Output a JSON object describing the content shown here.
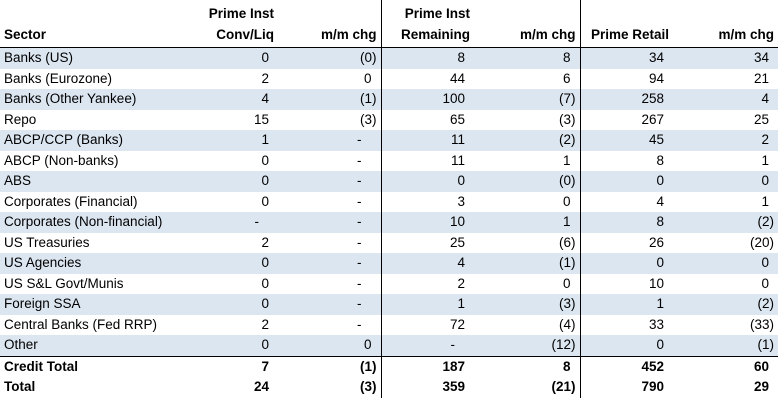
{
  "table": {
    "headers": [
      [
        "Sector"
      ],
      [
        "Prime Inst",
        "Conv/Liq"
      ],
      [
        "m/m chg"
      ],
      [
        "Prime Inst",
        "Remaining"
      ],
      [
        "m/m chg"
      ],
      [
        "Prime Retail"
      ],
      [
        "m/m chg"
      ]
    ],
    "rows": [
      [
        "Banks (US)",
        "0",
        "(0)",
        "8",
        "8",
        "34",
        "34"
      ],
      [
        "Banks (Eurozone)",
        "2",
        "0",
        "44",
        "6",
        "94",
        "21"
      ],
      [
        "Banks (Other Yankee)",
        "4",
        "(1)",
        "100",
        "(7)",
        "258",
        "4"
      ],
      [
        "Repo",
        "15",
        "(3)",
        "65",
        "(3)",
        "267",
        "25"
      ],
      [
        "ABCP/CCP (Banks)",
        "1",
        "-",
        "11",
        "(2)",
        "45",
        "2"
      ],
      [
        "ABCP (Non-banks)",
        "0",
        "-",
        "11",
        "1",
        "8",
        "1"
      ],
      [
        "ABS",
        "0",
        "-",
        "0",
        "(0)",
        "0",
        "0"
      ],
      [
        "Corporates (Financial)",
        "0",
        "-",
        "3",
        "0",
        "4",
        "1"
      ],
      [
        "Corporates (Non-financial)",
        "-",
        "-",
        "10",
        "1",
        "8",
        "(2)"
      ],
      [
        "US Treasuries",
        "2",
        "-",
        "25",
        "(6)",
        "26",
        "(20)"
      ],
      [
        "US Agencies",
        "0",
        "-",
        "4",
        "(1)",
        "0",
        "0"
      ],
      [
        "US S&L Govt/Munis",
        "0",
        "-",
        "2",
        "0",
        "10",
        "0"
      ],
      [
        "Foreign SSA",
        "0",
        "-",
        "1",
        "(3)",
        "1",
        "(2)"
      ],
      [
        "Central Banks (Fed RRP)",
        "2",
        "-",
        "72",
        "(4)",
        "33",
        "(33)"
      ],
      [
        "Other",
        "0",
        "0",
        "-",
        "(12)",
        "0",
        "(1)"
      ]
    ],
    "totals": [
      [
        "Credit Total",
        "7",
        "(1)",
        "187",
        "8",
        "452",
        "60"
      ],
      [
        "Total",
        "24",
        "(3)",
        "359",
        "(21)",
        "790",
        "29"
      ]
    ]
  }
}
